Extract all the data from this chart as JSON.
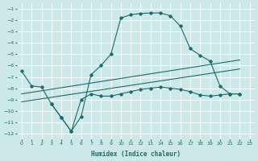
{
  "xlabel": "Humidex (Indice chaleur)",
  "bg_color": "#cce8e8",
  "line_color": "#1a6b6b",
  "grid_color": "#ffffff",
  "xlim": [
    -0.5,
    23.5
  ],
  "ylim": [
    -12.5,
    -0.5
  ],
  "xticks": [
    0,
    1,
    2,
    3,
    4,
    5,
    6,
    7,
    8,
    9,
    10,
    11,
    12,
    13,
    14,
    15,
    16,
    17,
    18,
    19,
    20,
    21,
    22,
    23
  ],
  "yticks": [
    -12,
    -11,
    -10,
    -9,
    -8,
    -7,
    -6,
    -5,
    -4,
    -3,
    -2,
    -1
  ],
  "series1_x": [
    0,
    1,
    2,
    3,
    4,
    5,
    6,
    7,
    8,
    9,
    10,
    11,
    12,
    13,
    14,
    15,
    16,
    17,
    18,
    19,
    20,
    21,
    22
  ],
  "series1_y": [
    -6.5,
    -7.8,
    -7.9,
    -9.4,
    -10.6,
    -11.8,
    -10.5,
    -6.8,
    -6.0,
    -5.0,
    -1.8,
    -1.5,
    -1.4,
    -1.35,
    -1.35,
    -1.6,
    -2.5,
    -4.5,
    -5.1,
    -5.6,
    -7.8,
    -8.5,
    -8.5
  ],
  "series2_x": [
    3,
    4,
    5,
    6,
    7,
    8,
    9,
    10,
    11,
    12,
    13,
    14,
    15,
    16,
    17,
    18,
    19,
    20,
    21,
    22
  ],
  "series2_y": [
    -9.4,
    -10.6,
    -11.8,
    -9.0,
    -8.5,
    -8.7,
    -8.7,
    -8.5,
    -8.3,
    -8.1,
    -8.0,
    -7.9,
    -8.0,
    -8.1,
    -8.3,
    -8.6,
    -8.7,
    -8.6,
    -8.5,
    -8.5
  ],
  "line1_x": [
    0,
    22
  ],
  "line1_y": [
    -8.5,
    -5.5
  ],
  "line2_x": [
    0,
    22
  ],
  "line2_y": [
    -9.2,
    -6.3
  ]
}
